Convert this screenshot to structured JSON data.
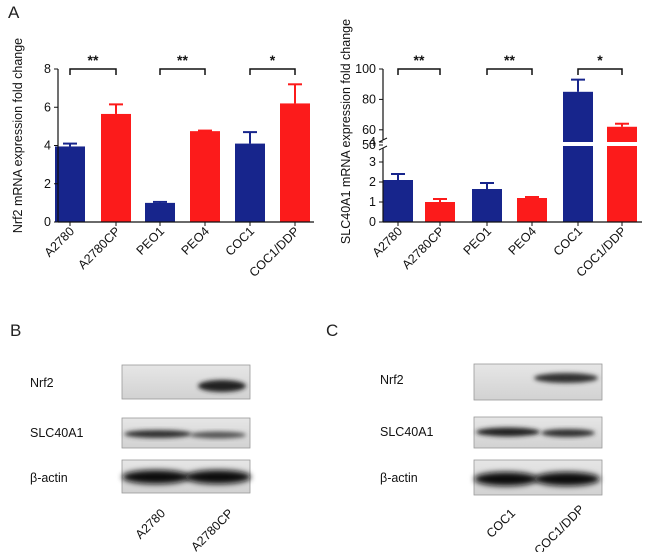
{
  "colors": {
    "navy": "#17258c",
    "red": "#fc1b1b",
    "axis": "#111111"
  },
  "panels": {
    "a": "A",
    "b": "B",
    "c": "C"
  },
  "chart_data": [
    {
      "type": "bar",
      "categories": [
        "A2780",
        "A2780CP",
        "PEO1",
        "PEO4",
        "COC1",
        "COC1/DDP"
      ],
      "values": [
        3.95,
        5.65,
        1.0,
        4.75,
        4.1,
        6.2
      ],
      "errors": [
        0.15,
        0.5,
        0.05,
        0.03,
        0.6,
        1.0
      ],
      "bar_colors": [
        "navy",
        "red",
        "navy",
        "red",
        "navy",
        "red"
      ],
      "ylabel": "Nrf2 mRNA expression fold change",
      "ylim": [
        0,
        8
      ],
      "yticks": [
        "0",
        "2",
        "4",
        "6",
        "8"
      ],
      "significance": [
        {
          "pair": [
            0,
            1
          ],
          "label": "**"
        },
        {
          "pair": [
            2,
            3
          ],
          "label": "**"
        },
        {
          "pair": [
            4,
            5
          ],
          "label": "*"
        }
      ]
    },
    {
      "type": "bar",
      "categories": [
        "A2780",
        "A2780CP",
        "PEO1",
        "PEO4",
        "COC1",
        "COC1/DDP"
      ],
      "values": [
        2.1,
        1.0,
        1.65,
        1.2,
        85,
        62
      ],
      "errors": [
        0.3,
        0.15,
        0.3,
        0.05,
        8,
        2
      ],
      "bar_colors": [
        "navy",
        "red",
        "navy",
        "red",
        "navy",
        "red"
      ],
      "ylabel": "SLC40A1 mRNA expression fold change",
      "axis_break": {
        "lower": [
          0,
          4
        ],
        "upper": [
          50,
          100
        ]
      },
      "yticks_lower": [
        "0",
        "1",
        "2",
        "3",
        "4"
      ],
      "yticks_upper": [
        "50",
        "60",
        "80",
        "100"
      ],
      "significance": [
        {
          "pair": [
            0,
            1
          ],
          "label": "**"
        },
        {
          "pair": [
            2,
            3
          ],
          "label": "**"
        },
        {
          "pair": [
            4,
            5
          ],
          "label": "*"
        }
      ]
    }
  ],
  "blot_b": {
    "rows": [
      "Nrf2",
      "SLC40A1",
      "β-actin"
    ],
    "lanes": [
      "A2780",
      "A2780CP"
    ]
  },
  "blot_c": {
    "rows": [
      "Nrf2",
      "SLC40A1",
      "β-actin"
    ],
    "lanes": [
      "COC1",
      "COC1/DDP"
    ]
  }
}
